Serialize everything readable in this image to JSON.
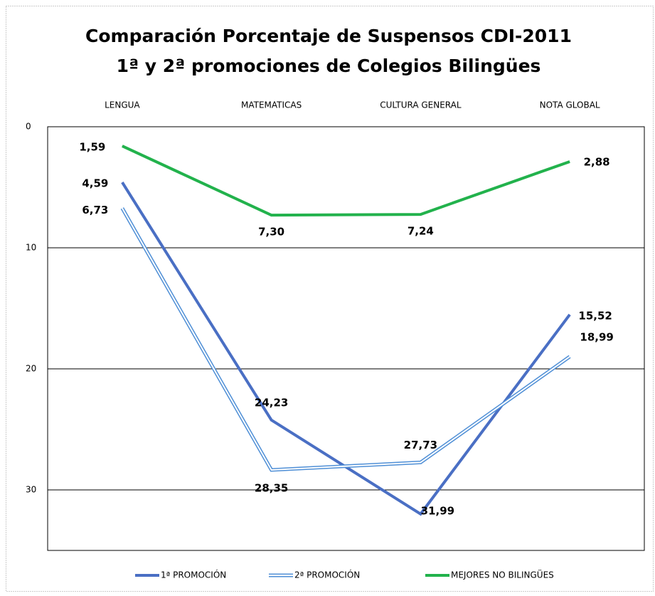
{
  "chart_data": {
    "type": "line",
    "title": [
      "Comparación Porcentaje de Suspensos CDI-2011",
      "1ª y 2ª promociones de Colegios Bilingües"
    ],
    "categories": [
      "LENGUA",
      "MATEMATICAS",
      "CULTURA GENERAL",
      "NOTA GLOBAL"
    ],
    "series": [
      {
        "name": "1ª PROMOCIÓN",
        "color": "#4a6fc4",
        "style": "solid",
        "values": [
          4.59,
          24.23,
          31.99,
          15.52
        ],
        "value_labels": [
          "4,59",
          "24,23",
          "31,99",
          "15,52"
        ]
      },
      {
        "name": "2ª PROMOCIÓN",
        "color": "#4f8fd6",
        "style": "double",
        "values": [
          6.73,
          28.35,
          27.73,
          18.99
        ],
        "value_labels": [
          "6,73",
          "28,35",
          "27,73",
          "18,99"
        ]
      },
      {
        "name": "MEJORES NO BILINGÜES",
        "color": "#22b24c",
        "style": "solid",
        "values": [
          1.59,
          7.3,
          7.24,
          2.88
        ],
        "value_labels": [
          "1,59",
          "7,30",
          "7,24",
          "2,88"
        ]
      }
    ],
    "ylim": [
      0,
      35
    ],
    "y_reversed": true,
    "yticks": [
      0,
      10,
      20,
      30
    ],
    "grid": true,
    "legend": "bottom"
  }
}
